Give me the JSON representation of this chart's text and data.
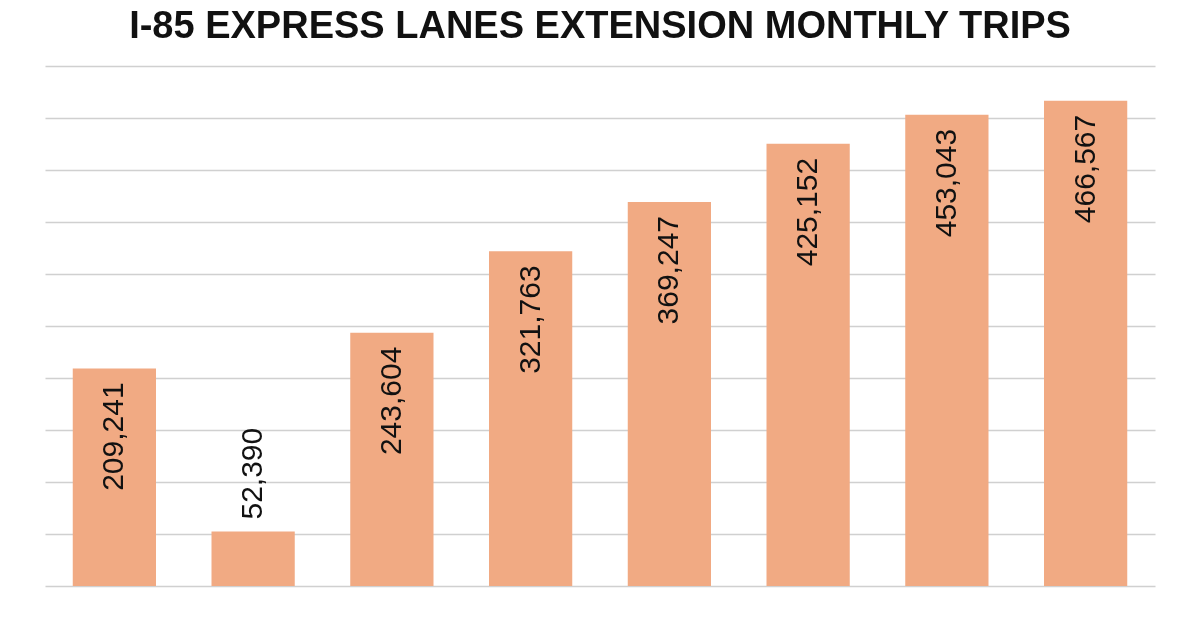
{
  "chart_data": {
    "type": "bar",
    "title": "I-85 EXPRESS LANES EXTENSION MONTHLY TRIPS",
    "categories": [
      null,
      null,
      null,
      null,
      null,
      null,
      null,
      null
    ],
    "values": [
      209241,
      52390,
      243604,
      321763,
      369247,
      425152,
      453043,
      466567
    ],
    "value_labels": [
      "209,241",
      "52,390",
      "243,604",
      "321,763",
      "369,247",
      "425,152",
      "453,043",
      "466,567"
    ],
    "color": "#f1aa83",
    "grid": "y"
  }
}
